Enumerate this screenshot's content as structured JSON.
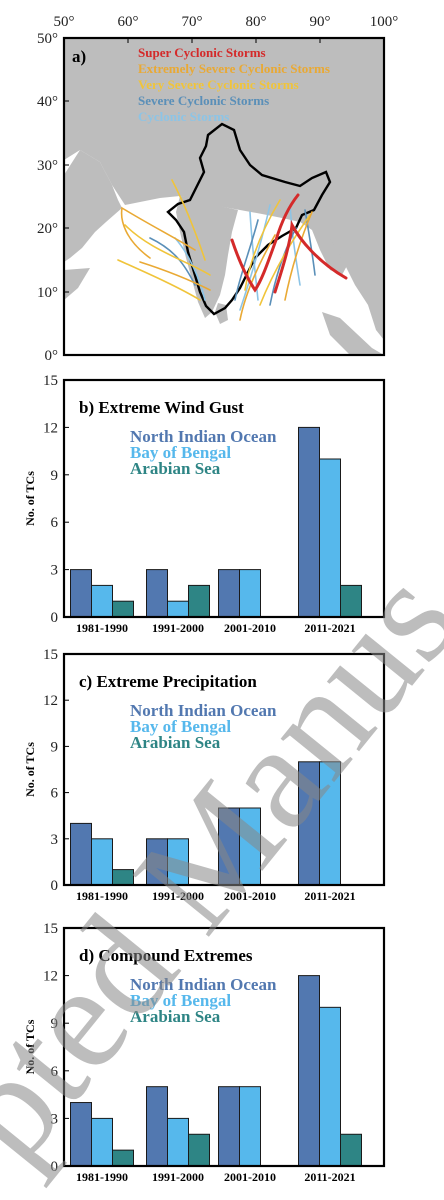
{
  "map": {
    "panel_label": "a)",
    "lon_ticks": [
      "50°",
      "60°",
      "70°",
      "80°",
      "90°",
      "100°"
    ],
    "lat_ticks": [
      "50°",
      "40°",
      "30°",
      "20°",
      "10°",
      "0°"
    ],
    "legend": [
      {
        "label": "Super Cyclonic Storms",
        "color": "#d42a2a"
      },
      {
        "label": "Extremely Severe Cyclonic Storms",
        "color": "#e9a934"
      },
      {
        "label": "Very Severe Cyclonic Storms",
        "color": "#f0c43a"
      },
      {
        "label": "Severe Cyclonic Storms",
        "color": "#5a8fb8"
      },
      {
        "label": "Cyclonic Storms",
        "color": "#8cc4e6"
      }
    ]
  },
  "colors": {
    "nio": "#5278b0",
    "bob": "#56b8ec",
    "as": "#2e8585",
    "land": "#bdbdbd",
    "ocean": "#ffffff"
  },
  "watermark": "pted Manus",
  "chart_data": [
    {
      "type": "bar",
      "title": "b) Extreme Wind Gust",
      "ylabel": "No. of TCs",
      "ylim": [
        0,
        15
      ],
      "yticks": [
        0,
        3,
        6,
        9,
        12,
        15
      ],
      "categories": [
        "1981-1990",
        "1991-2000",
        "2001-2010",
        "2011-2021"
      ],
      "series": [
        {
          "name": "North Indian Ocean",
          "values": [
            3,
            3,
            3,
            12
          ]
        },
        {
          "name": "Bay of Bengal",
          "values": [
            2,
            1,
            3,
            10
          ]
        },
        {
          "name": "Arabian Sea",
          "values": [
            1,
            2,
            0,
            2
          ]
        }
      ]
    },
    {
      "type": "bar",
      "title": "c) Extreme Precipitation",
      "ylabel": "No. of TCs",
      "ylim": [
        0,
        15
      ],
      "yticks": [
        0,
        3,
        6,
        9,
        12,
        15
      ],
      "categories": [
        "1981-1990",
        "1991-2000",
        "2001-2010",
        "2011-2021"
      ],
      "series": [
        {
          "name": "North Indian Ocean",
          "values": [
            4,
            3,
            5,
            8
          ]
        },
        {
          "name": "Bay of Bengal",
          "values": [
            3,
            3,
            5,
            8
          ]
        },
        {
          "name": "Arabian Sea",
          "values": [
            1,
            0,
            0,
            0
          ]
        }
      ]
    },
    {
      "type": "bar",
      "title": "d) Compound Extremes",
      "ylabel": "No. of TCs",
      "ylim": [
        0,
        15
      ],
      "yticks": [
        0,
        3,
        6,
        9,
        12,
        15
      ],
      "categories": [
        "1981-1990",
        "1991-2000",
        "2001-2010",
        "2011-2021"
      ],
      "series": [
        {
          "name": "North Indian Ocean",
          "values": [
            4,
            5,
            5,
            12
          ]
        },
        {
          "name": "Bay of Bengal",
          "values": [
            3,
            3,
            5,
            10
          ]
        },
        {
          "name": "Arabian Sea",
          "values": [
            1,
            2,
            0,
            2
          ]
        }
      ]
    }
  ]
}
